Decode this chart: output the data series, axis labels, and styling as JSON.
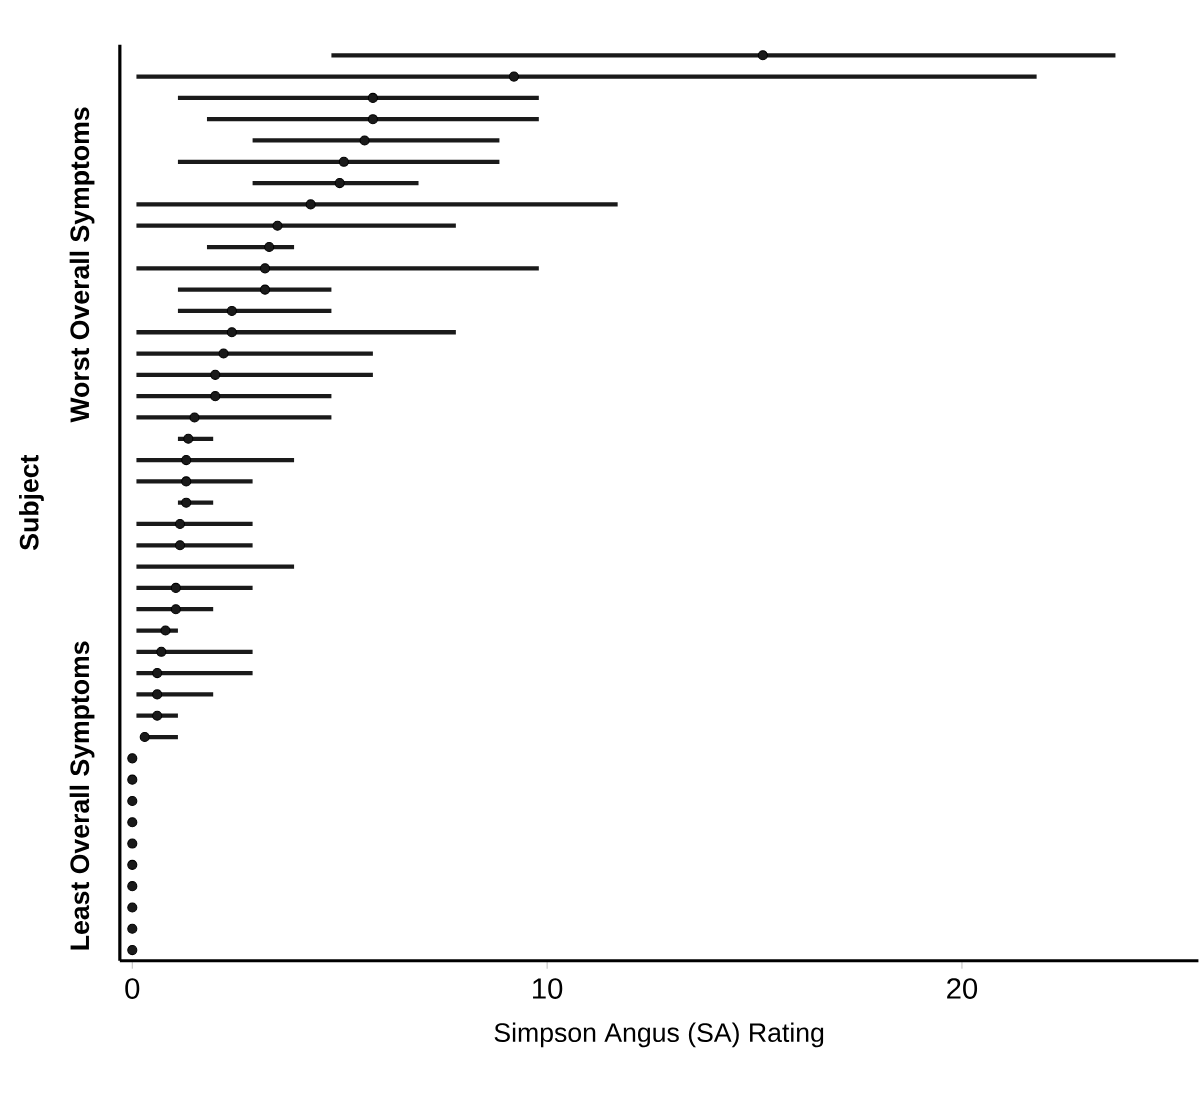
{
  "chart_data": {
    "type": "bar",
    "orientation": "horizontal",
    "xlabel": "Simpson Angus (SA) Rating",
    "ylabel": "Subject",
    "annotations": [
      "Worst Overall Symptoms",
      "Least Overall Symptoms"
    ],
    "categories": [
      null,
      null,
      null,
      null,
      null,
      null,
      null,
      null,
      null,
      null,
      null,
      null,
      null,
      null,
      null,
      null,
      null,
      null,
      null,
      null,
      null,
      null,
      null,
      null,
      null,
      null,
      null,
      null,
      null,
      null,
      null,
      null,
      null,
      null,
      null,
      null,
      null,
      null,
      null,
      null,
      null,
      null,
      null
    ],
    "series": [
      {
        "type": "bar",
        "color": "#1a1a1a",
        "base": [
          4.8,
          0.1,
          1.1,
          1.8,
          2.9,
          1.1,
          2.9,
          0.1,
          0.1,
          1.8,
          0.1,
          1.1,
          1.1,
          0.1,
          0.1,
          0.1,
          0.1,
          0.1,
          1.1,
          0.1,
          0.1,
          1.1,
          0.1,
          0.1,
          0.1,
          0.1,
          0.1,
          0.1,
          0.1,
          0.1,
          0.1,
          0.1,
          0.2,
          null,
          null,
          null,
          null,
          null,
          null,
          null,
          null,
          null,
          null
        ],
        "values": [
          18.9,
          21.7,
          8.7,
          8.0,
          5.95,
          7.75,
          4.0,
          11.6,
          7.7,
          2.1,
          9.7,
          3.7,
          3.7,
          7.7,
          5.7,
          5.7,
          4.7,
          4.7,
          0.85,
          3.8,
          2.8,
          0.85,
          2.8,
          2.8,
          3.8,
          2.8,
          1.85,
          1.0,
          2.8,
          2.8,
          1.85,
          1.0,
          0.9,
          null,
          null,
          null,
          null,
          null,
          null,
          null,
          null,
          null,
          null
        ]
      },
      {
        "type": "scatter",
        "color": "#1a1a1a",
        "values": [
          15.2,
          9.2,
          5.8,
          5.8,
          5.6,
          5.1,
          5.0,
          4.3,
          3.5,
          3.3,
          3.2,
          3.2,
          2.4,
          2.4,
          2.2,
          2.0,
          2.0,
          1.5,
          1.35,
          1.3,
          1.3,
          1.3,
          1.15,
          1.15,
          null,
          1.05,
          1.05,
          0.8,
          0.7,
          0.6,
          0.6,
          0.6,
          0.3,
          0,
          0,
          0,
          0,
          0,
          0,
          0,
          0,
          0,
          0
        ]
      }
    ],
    "xlim": [
      -0.3,
      25.7
    ],
    "xticks": [
      0,
      10,
      20
    ],
    "tick_labels": "x"
  }
}
